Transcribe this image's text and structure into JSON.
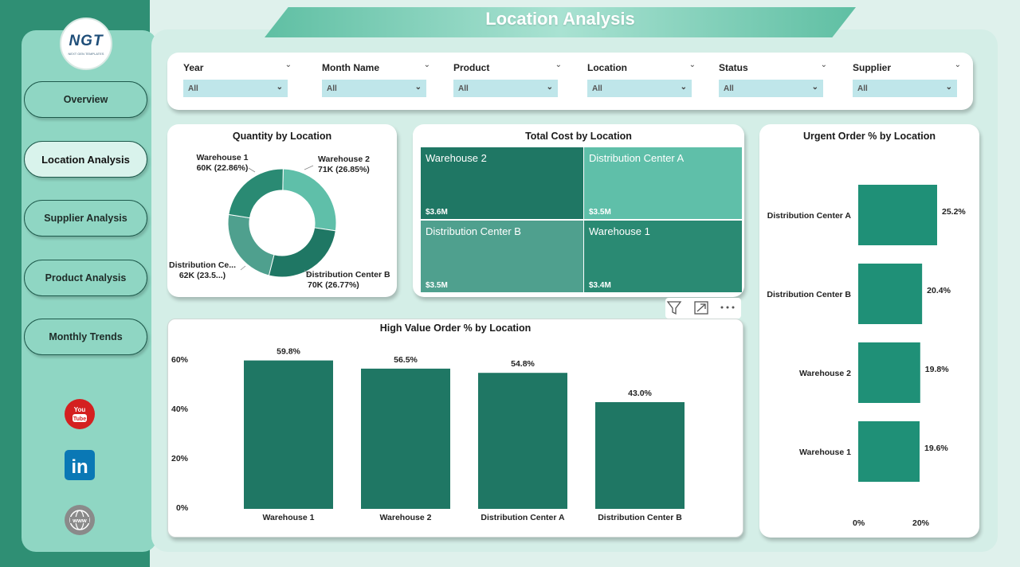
{
  "page": {
    "title": "Location Analysis"
  },
  "logo": {
    "text": "NGT",
    "subtitle": "NEXT GEN TEMPLATES"
  },
  "nav": [
    {
      "label": "Overview",
      "active": false
    },
    {
      "label": "Location Analysis",
      "active": true
    },
    {
      "label": "Supplier Analysis",
      "active": false
    },
    {
      "label": "Product Analysis",
      "active": false
    },
    {
      "label": "Monthly Trends",
      "active": false
    }
  ],
  "social": [
    {
      "icon": "youtube-icon",
      "text": "You Tube"
    },
    {
      "icon": "linkedin-icon",
      "text": "in"
    },
    {
      "icon": "website-icon",
      "text": "www"
    }
  ],
  "filters": [
    {
      "label": "Year",
      "value": "All"
    },
    {
      "label": "Month Name",
      "value": "All"
    },
    {
      "label": "Product",
      "value": "All"
    },
    {
      "label": "Location",
      "value": "All"
    },
    {
      "label": "Status",
      "value": "All"
    },
    {
      "label": "Supplier",
      "value": "All"
    }
  ],
  "colors": {
    "primary": "#1f7764",
    "mid": "#2a8a73",
    "light": "#5fbfa9",
    "pale": "#4fa08e",
    "urgent": "#1f9077"
  },
  "chart_data": [
    {
      "type": "pie",
      "title": "Quantity by Location",
      "slices": [
        {
          "name": "Warehouse 2",
          "value": 71,
          "pct": 26.85,
          "label": "71K (26.85%)",
          "color": "#5fbfa9"
        },
        {
          "name": "Distribution Center B",
          "value": 70,
          "pct": 26.77,
          "label": "70K (26.77%)",
          "color": "#1f7764"
        },
        {
          "name": "Distribution Ce...",
          "value": 62,
          "pct": 23.52,
          "label": "62K (23.5...)",
          "color": "#4fa08e"
        },
        {
          "name": "Warehouse 1",
          "value": 60,
          "pct": 22.86,
          "label": "60K (22.86%)",
          "color": "#2a8a73"
        }
      ]
    },
    {
      "type": "table",
      "title": "Total Cost by Location",
      "cells": [
        {
          "name": "Warehouse 2",
          "value": "$3.6M",
          "color": "#1f7764"
        },
        {
          "name": "Distribution Center A",
          "value": "$3.5M",
          "color": "#5fbfa9"
        },
        {
          "name": "Distribution Center B",
          "value": "$3.5M",
          "color": "#4fa08e"
        },
        {
          "name": "Warehouse 1",
          "value": "$3.4M",
          "color": "#2a8a73"
        }
      ]
    },
    {
      "type": "bar",
      "title": "High Value Order % by Location",
      "categories": [
        "Warehouse 1",
        "Warehouse 2",
        "Distribution Center A",
        "Distribution Center B"
      ],
      "values": [
        59.8,
        56.5,
        54.8,
        43.0
      ],
      "labels": [
        "59.8%",
        "56.5%",
        "54.8%",
        "43.0%"
      ],
      "yticks": [
        "60%",
        "40%",
        "20%",
        "0%"
      ],
      "ylim": [
        0,
        60
      ]
    },
    {
      "type": "bar",
      "orientation": "horizontal",
      "title": "Urgent Order % by Location",
      "categories": [
        "Distribution Center A",
        "Distribution Center B",
        "Warehouse 2",
        "Warehouse 1"
      ],
      "values": [
        25.2,
        20.4,
        19.8,
        19.6
      ],
      "labels": [
        "25.2%",
        "20.4%",
        "19.8%",
        "19.6%"
      ],
      "xticks": [
        "0%",
        "20%"
      ],
      "xlim": [
        0,
        30
      ]
    }
  ]
}
